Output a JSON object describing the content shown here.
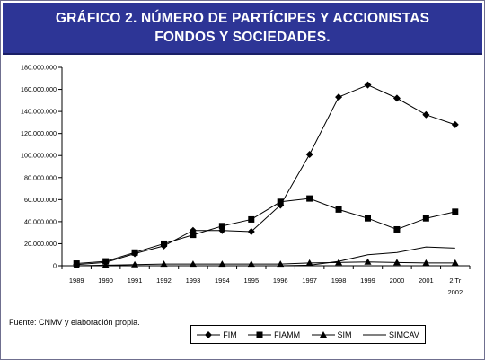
{
  "header": {
    "title_line1": "GRÁFICO 2. NÚMERO DE PARTÍCIPES Y ACCIONISTAS",
    "title_line2": "FONDOS Y SOCIEDADES."
  },
  "source_note": "Fuente: CNMV y elaboración propia.",
  "chart_data": {
    "type": "line",
    "title": "GRÁFICO 2. NÚMERO DE PARTÍCIPES Y ACCIONISTAS FONDOS Y SOCIEDADES.",
    "xlabel": "",
    "ylabel": "",
    "categories": [
      "1989",
      "1990",
      "1991",
      "1992",
      "1993",
      "1994",
      "1995",
      "1996",
      "1997",
      "1998",
      "1999",
      "2000",
      "2001",
      "2 Tr 2002"
    ],
    "category_labels": [
      [
        "1989"
      ],
      [
        "1990"
      ],
      [
        "1991"
      ],
      [
        "1992"
      ],
      [
        "1993"
      ],
      [
        "1994"
      ],
      [
        "1995"
      ],
      [
        "1996"
      ],
      [
        "1997"
      ],
      [
        "1998"
      ],
      [
        "1999"
      ],
      [
        "2000"
      ],
      [
        "2001"
      ],
      [
        "2 Tr",
        "2002"
      ]
    ],
    "ylim": [
      0,
      180000000
    ],
    "yticks": [
      0,
      20000000,
      40000000,
      60000000,
      80000000,
      100000000,
      120000000,
      140000000,
      160000000,
      180000000
    ],
    "ytick_labels": [
      "0",
      "20.000.000",
      "40.000.000",
      "60.000.000",
      "80.000.000",
      "100.000.000",
      "120.000.000",
      "140.000.000",
      "160.000.000",
      "180.000.000"
    ],
    "grid": false,
    "legend_position": "bottom",
    "series": [
      {
        "name": "FIM",
        "marker": "diamond",
        "values": [
          1000000,
          3000000,
          11000000,
          18000000,
          32000000,
          32000000,
          31000000,
          55000000,
          101000000,
          153000000,
          164000000,
          152000000,
          137000000,
          128000000
        ]
      },
      {
        "name": "FIAMM",
        "marker": "square",
        "values": [
          2000000,
          4000000,
          12000000,
          20000000,
          28000000,
          36000000,
          42000000,
          58000000,
          61000000,
          51000000,
          43000000,
          33000000,
          43000000,
          49000000
        ]
      },
      {
        "name": "SIM",
        "marker": "triangle",
        "values": [
          0,
          500000,
          1000000,
          1500000,
          1500000,
          1500000,
          1500000,
          1500000,
          2500000,
          3000000,
          3500000,
          3000000,
          2500000,
          2500000
        ]
      },
      {
        "name": "SIMCAV",
        "marker": "none",
        "values": [
          0,
          0,
          0,
          0,
          0,
          0,
          0,
          0,
          500000,
          4000000,
          10000000,
          12000000,
          17000000,
          16000000
        ]
      }
    ],
    "colors": {
      "line": "#000000",
      "header_bg": "#2d3596",
      "header_text": "#ffffff"
    }
  }
}
